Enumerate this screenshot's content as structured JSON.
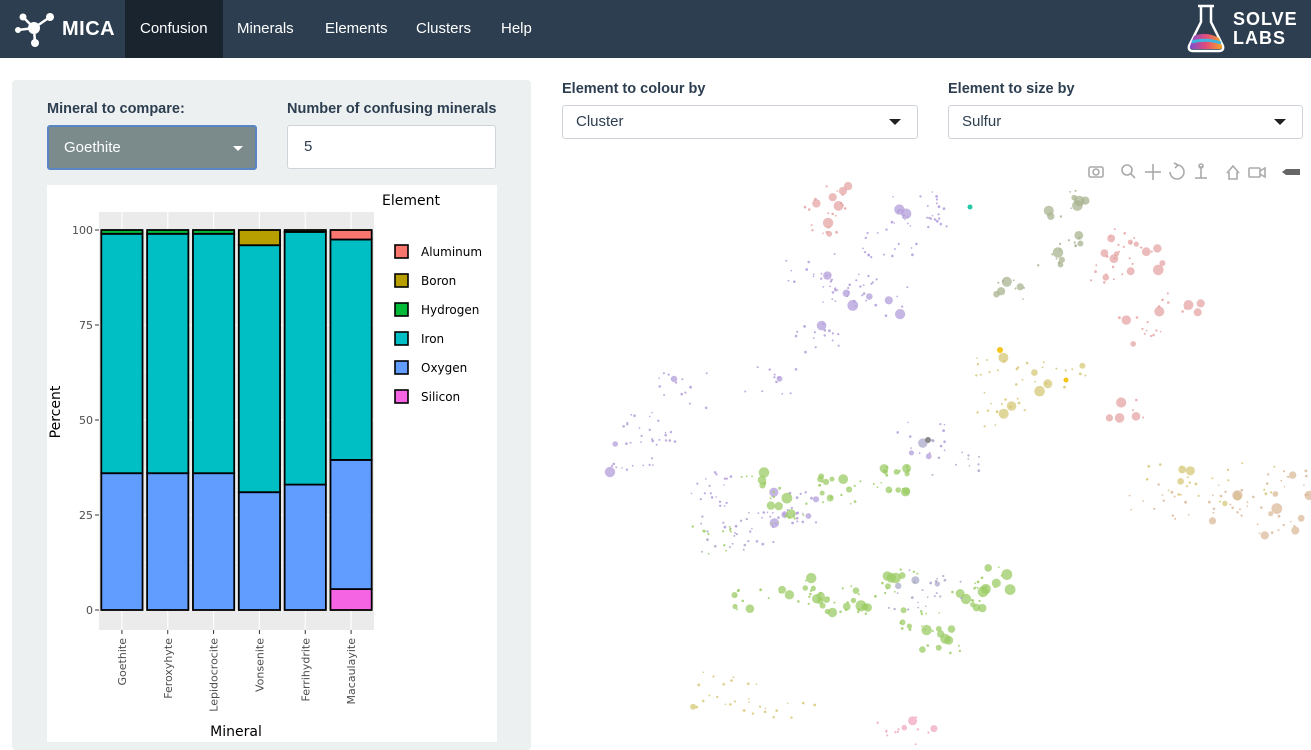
{
  "app": {
    "brand": "MICA",
    "nav": [
      "Confusion",
      "Minerals",
      "Elements",
      "Clusters",
      "Help"
    ],
    "active_nav": "Confusion",
    "partner_logo_line1": "SOLVE",
    "partner_logo_line2": "LABS"
  },
  "sidebar": {
    "mineral_label": "Mineral to compare:",
    "mineral_value": "Goethite",
    "number_label": "Number of confusing minerals",
    "number_value": "5"
  },
  "controls": {
    "colour_label": "Element to colour by",
    "colour_value": "Cluster",
    "size_label": "Element to size by",
    "size_value": "Sulfur"
  },
  "colors": {
    "navbar": "#2c3e50",
    "Aluminum": "#f8766d",
    "Boron": "#b79f00",
    "Hydrogen": "#00ba38",
    "Iron": "#00bfc4",
    "Oxygen": "#619cff",
    "Silicon": "#f564e3"
  },
  "chart_data": {
    "type": "bar",
    "stacked": true,
    "xlabel": "Mineral",
    "ylabel": "Percent",
    "legend_title": "Element",
    "legend_position": "right",
    "ylim": [
      0,
      100
    ],
    "yticks": [
      "0",
      "25",
      "50",
      "75",
      "100"
    ],
    "categories": [
      "Goethite",
      "Feroxyhyte",
      "Lepidocrocite",
      "Vonsenite",
      "Ferrihydrite",
      "Macaulayite"
    ],
    "series": [
      {
        "name": "Silicon",
        "values": [
          0,
          0,
          0,
          0,
          0,
          5.5
        ]
      },
      {
        "name": "Oxygen",
        "values": [
          36,
          36,
          36,
          31,
          33,
          34
        ]
      },
      {
        "name": "Iron",
        "values": [
          63,
          63,
          63,
          65,
          66.5,
          58
        ]
      },
      {
        "name": "Hydrogen",
        "values": [
          1,
          1,
          1,
          0,
          0,
          0
        ]
      },
      {
        "name": "Boron",
        "values": [
          0,
          0,
          0,
          4,
          0.5,
          0
        ]
      },
      {
        "name": "Aluminum",
        "values": [
          0,
          0,
          0,
          0,
          0,
          2.5
        ]
      }
    ],
    "legend": [
      "Aluminum",
      "Boron",
      "Hydrogen",
      "Iron",
      "Oxygen",
      "Silicon"
    ]
  }
}
